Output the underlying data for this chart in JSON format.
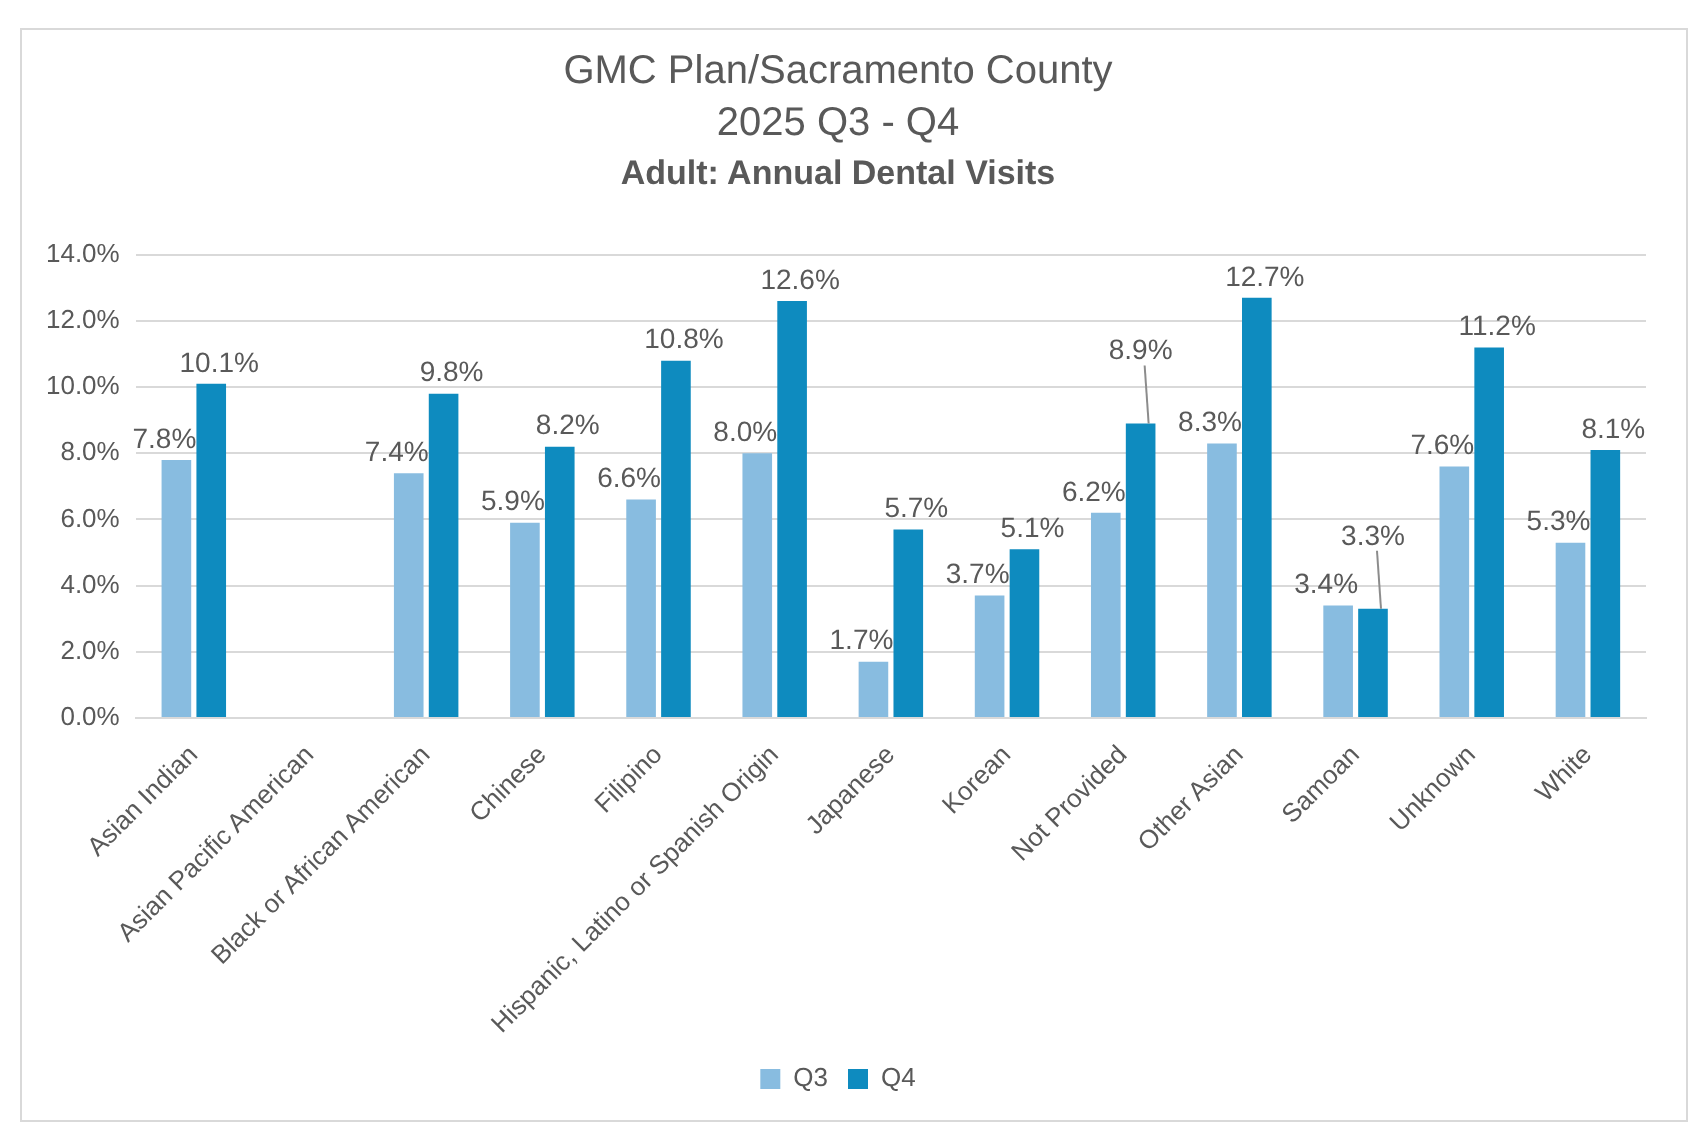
{
  "chart_data": {
    "type": "bar",
    "title": "GMC Plan/Sacramento County\n2025 Q3 - Q4",
    "subtitle": "Adult: Annual Dental Visits",
    "categories": [
      "Asian Indian",
      "Asian Pacific American",
      "Black or African American",
      "Chinese",
      "Filipino",
      "Hispanic, Latino or Spanish Origin",
      "Japanese",
      "Korean",
      "Not Provided",
      "Other Asian",
      "Samoan",
      "Unknown",
      "White"
    ],
    "series": [
      {
        "name": "Q3",
        "color": "#88bce0",
        "values": [
          7.8,
          null,
          7.4,
          5.9,
          6.6,
          8.0,
          1.7,
          3.7,
          6.2,
          8.3,
          3.4,
          7.6,
          5.3
        ],
        "value_labels": [
          "7.8%",
          null,
          "7.4%",
          "5.9%",
          "6.6%",
          "8.0%",
          "1.7%",
          "3.7%",
          "6.2%",
          "8.3%",
          "3.4%",
          "7.6%",
          "5.3%"
        ]
      },
      {
        "name": "Q4",
        "color": "#0e8bbf",
        "values": [
          10.1,
          null,
          9.8,
          8.2,
          10.8,
          12.6,
          5.7,
          5.1,
          8.9,
          12.7,
          3.3,
          11.2,
          8.1
        ],
        "value_labels": [
          "10.1%",
          null,
          "9.8%",
          "8.2%",
          "10.8%",
          "12.6%",
          "5.7%",
          "5.1%",
          "8.9%",
          "12.7%",
          "3.3%",
          "11.2%",
          "8.1%"
        ]
      }
    ],
    "ylim": [
      0,
      14
    ],
    "yticks": [
      {
        "value": 0,
        "label": "0.0%"
      },
      {
        "value": 2,
        "label": "2.0%"
      },
      {
        "value": 4,
        "label": "4.0%"
      },
      {
        "value": 6,
        "label": "6.0%"
      },
      {
        "value": 8,
        "label": "8.0%"
      },
      {
        "value": 10,
        "label": "10.0%"
      },
      {
        "value": 12,
        "label": "12.0%"
      },
      {
        "value": 14,
        "label": "14.0%"
      }
    ],
    "grid": "y",
    "legend": "bottom"
  }
}
